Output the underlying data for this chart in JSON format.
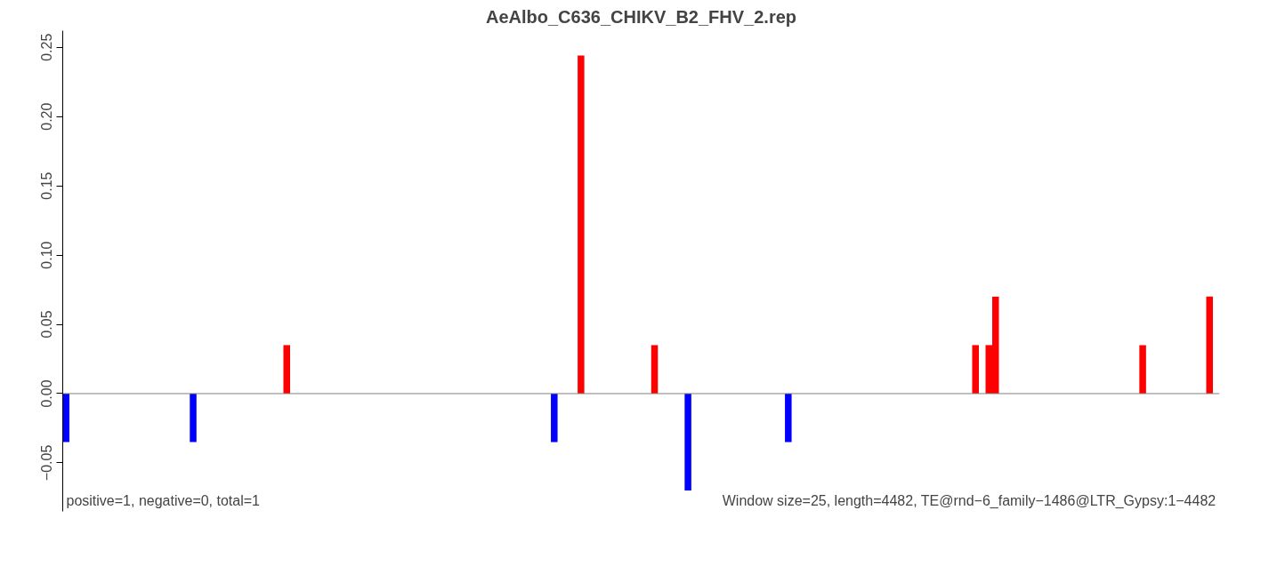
{
  "chart_data": {
    "type": "bar",
    "title": "AeAlbo_C636_CHIKV_B2_FHV_2.rep",
    "categories": [
      null,
      null,
      null,
      null,
      null,
      null,
      null,
      null,
      null,
      null,
      null,
      null,
      null,
      null,
      null,
      null,
      null,
      null,
      null,
      null,
      null,
      null,
      null,
      null,
      null,
      null,
      null,
      null,
      null,
      null,
      null,
      null,
      null,
      null,
      null,
      null,
      null,
      null,
      null,
      null,
      null,
      null,
      null,
      null,
      null,
      null,
      null,
      null,
      null,
      null,
      null,
      null,
      null,
      null,
      null,
      null,
      null,
      null,
      null,
      null,
      null,
      null,
      null,
      null,
      null,
      null,
      null,
      null,
      null,
      null,
      null,
      null,
      null,
      null,
      null,
      null,
      null,
      null,
      null,
      null,
      null,
      null,
      null,
      null,
      null,
      null,
      null,
      null,
      null,
      null,
      null,
      null,
      null,
      null,
      null,
      null,
      null,
      null,
      null,
      null,
      null,
      null,
      null,
      null,
      null,
      null,
      null,
      null,
      null,
      null,
      null,
      null,
      null,
      null,
      null,
      null,
      null,
      null,
      null,
      null,
      null,
      null,
      null,
      null,
      null,
      null,
      null,
      null,
      null,
      null,
      null,
      null,
      null,
      null,
      null,
      null,
      null,
      null,
      null,
      null,
      null,
      null,
      null,
      null,
      null,
      null,
      null,
      null,
      null,
      null,
      null,
      null,
      null,
      null,
      null,
      null,
      null,
      null,
      null,
      null,
      null,
      null,
      null,
      null,
      null,
      null,
      null,
      null,
      null,
      null,
      null,
      null,
      null
    ],
    "series": [
      {
        "color": "#ff0000",
        "values": [
          null,
          null,
          null,
          null,
          null,
          null,
          null,
          null,
          null,
          null,
          null,
          null,
          null,
          null,
          null,
          null,
          null,
          null,
          null,
          null,
          null,
          null,
          null,
          null,
          null,
          null,
          null,
          null,
          null,
          null,
          null,
          null,
          null,
          0.035,
          null,
          null,
          null,
          null,
          null,
          null,
          null,
          null,
          null,
          null,
          null,
          null,
          null,
          null,
          null,
          null,
          null,
          null,
          null,
          null,
          null,
          null,
          null,
          null,
          null,
          null,
          null,
          null,
          null,
          null,
          null,
          null,
          null,
          null,
          null,
          null,
          null,
          null,
          null,
          null,
          null,
          null,
          null,
          0.244,
          null,
          null,
          null,
          null,
          null,
          null,
          null,
          null,
          null,
          null,
          0.035,
          null,
          null,
          null,
          null,
          null,
          null,
          null,
          null,
          null,
          null,
          null,
          null,
          null,
          null,
          null,
          null,
          null,
          null,
          null,
          null,
          null,
          null,
          null,
          null,
          null,
          null,
          null,
          null,
          null,
          null,
          null,
          null,
          null,
          null,
          null,
          null,
          null,
          null,
          null,
          null,
          null,
          null,
          null,
          null,
          null,
          null,
          null,
          0.035,
          null,
          0.035,
          0.07,
          null,
          null,
          null,
          null,
          null,
          null,
          null,
          null,
          null,
          null,
          null,
          null,
          null,
          null,
          null,
          null,
          null,
          null,
          null,
          null,
          null,
          0.035,
          null,
          null,
          null,
          null,
          null,
          null,
          null,
          null,
          null,
          0.07,
          null
        ]
      },
      {
        "color": "#0000ff",
        "values": [
          -0.035,
          null,
          null,
          null,
          null,
          null,
          null,
          null,
          null,
          null,
          null,
          null,
          null,
          null,
          null,
          null,
          null,
          null,
          null,
          -0.035,
          null,
          null,
          null,
          null,
          null,
          null,
          null,
          null,
          null,
          null,
          null,
          null,
          null,
          null,
          null,
          null,
          null,
          null,
          null,
          null,
          null,
          null,
          null,
          null,
          null,
          null,
          null,
          null,
          null,
          null,
          null,
          null,
          null,
          null,
          null,
          null,
          null,
          null,
          null,
          null,
          null,
          null,
          null,
          null,
          null,
          null,
          null,
          null,
          null,
          null,
          null,
          null,
          null,
          -0.035,
          null,
          null,
          null,
          null,
          null,
          null,
          null,
          null,
          null,
          null,
          null,
          null,
          null,
          null,
          null,
          null,
          null,
          null,
          null,
          -0.07,
          null,
          null,
          null,
          null,
          null,
          null,
          null,
          null,
          null,
          null,
          null,
          null,
          null,
          null,
          -0.035,
          null,
          null,
          null,
          null,
          null,
          null,
          null,
          null,
          null,
          null,
          null,
          null,
          null,
          null,
          null,
          null,
          null,
          null,
          null,
          null,
          null,
          null,
          null,
          null,
          null,
          null,
          null,
          null,
          null,
          null,
          null,
          null,
          null,
          null,
          null,
          null,
          null,
          null,
          null,
          null,
          null,
          null,
          null,
          null,
          null,
          null,
          null,
          null,
          null,
          null,
          null,
          null,
          null,
          null,
          null,
          null,
          null,
          null,
          null,
          null,
          null,
          null,
          null,
          null
        ]
      }
    ],
    "ylim": [
      -0.085,
      0.262
    ],
    "yticks": [
      {
        "value": -0.05,
        "label": "−0.05"
      },
      {
        "value": 0,
        "label": "0.00"
      },
      0.05,
      {
        "value": 0.1,
        "label": "0.10"
      },
      0.15,
      {
        "value": 0.2,
        "label": "0.20"
      },
      0.25
    ],
    "ref_lines": [
      {
        "axis": "y",
        "value": 0,
        "color": "#808080"
      }
    ],
    "annotations": [
      "positive=1, negative=0, total=1",
      "Window size=25, length=4482, TE@rnd−6_family−1486@LTR_Gypsy:1−4482"
    ],
    "grid": false
  }
}
